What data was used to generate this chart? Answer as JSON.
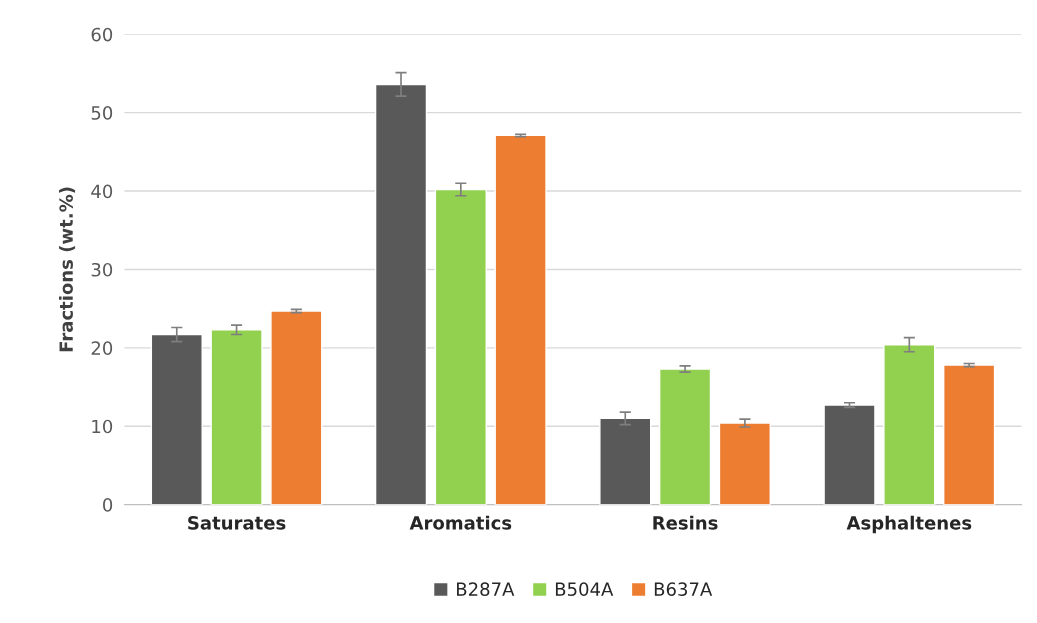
{
  "chart_data": {
    "type": "bar",
    "ylabel": "Fractions (wt.%)",
    "categories": [
      "Saturates",
      "Aromatics",
      "Resins",
      "Asphaltenes"
    ],
    "series": [
      {
        "name": "B287A",
        "color": "#595959",
        "values": [
          21.7,
          53.6,
          11.0,
          12.7
        ],
        "errors": [
          0.9,
          1.5,
          0.8,
          0.3
        ]
      },
      {
        "name": "B504A",
        "color": "#92d050",
        "values": [
          22.3,
          40.2,
          17.3,
          20.4
        ],
        "errors": [
          0.6,
          0.8,
          0.4,
          0.9
        ]
      },
      {
        "name": "B637A",
        "color": "#ed7d31",
        "values": [
          24.7,
          47.1,
          10.4,
          17.8
        ],
        "errors": [
          0.2,
          0.15,
          0.5,
          0.2
        ]
      }
    ],
    "ylim": [
      0,
      60
    ],
    "yticks": [
      0,
      10,
      20,
      30,
      40,
      50,
      60
    ],
    "grid": "y",
    "legend": "bottom"
  }
}
